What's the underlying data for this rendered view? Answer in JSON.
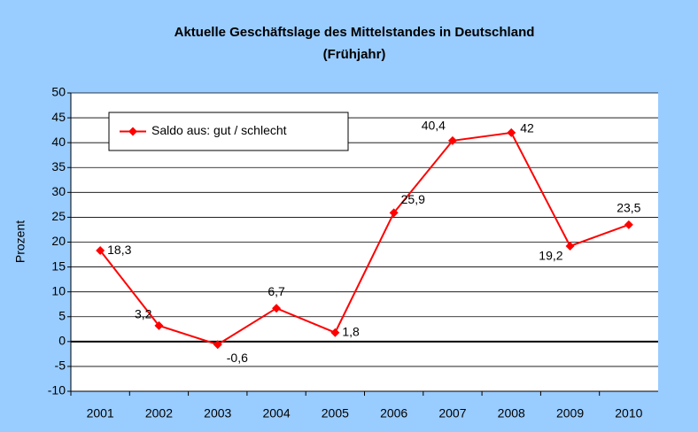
{
  "chart_data": {
    "type": "line",
    "title": "Aktuelle Geschäftslage des Mittelstandes in Deutschland",
    "subtitle": "(Frühjahr)",
    "y_label": "Prozent",
    "categories": [
      "2001",
      "2002",
      "2003",
      "2004",
      "2005",
      "2006",
      "2007",
      "2008",
      "2009",
      "2010"
    ],
    "series": [
      {
        "name": "Saldo aus: gut / schlecht",
        "color": "#ff0000",
        "values": [
          18.3,
          3.2,
          -0.6,
          6.7,
          1.8,
          25.9,
          40.4,
          42,
          19.2,
          23.5
        ],
        "value_labels": [
          "18,3",
          "3,2",
          "-0,6",
          "6,7",
          "1,8",
          "25,9",
          "40,4",
          "42",
          "19,2",
          "23,5"
        ]
      }
    ],
    "ylim": [
      -10,
      50
    ],
    "yticks": [
      -10,
      -5,
      0,
      5,
      10,
      15,
      20,
      25,
      30,
      35,
      40,
      45,
      50
    ],
    "grid": true,
    "legend": "top-left"
  }
}
